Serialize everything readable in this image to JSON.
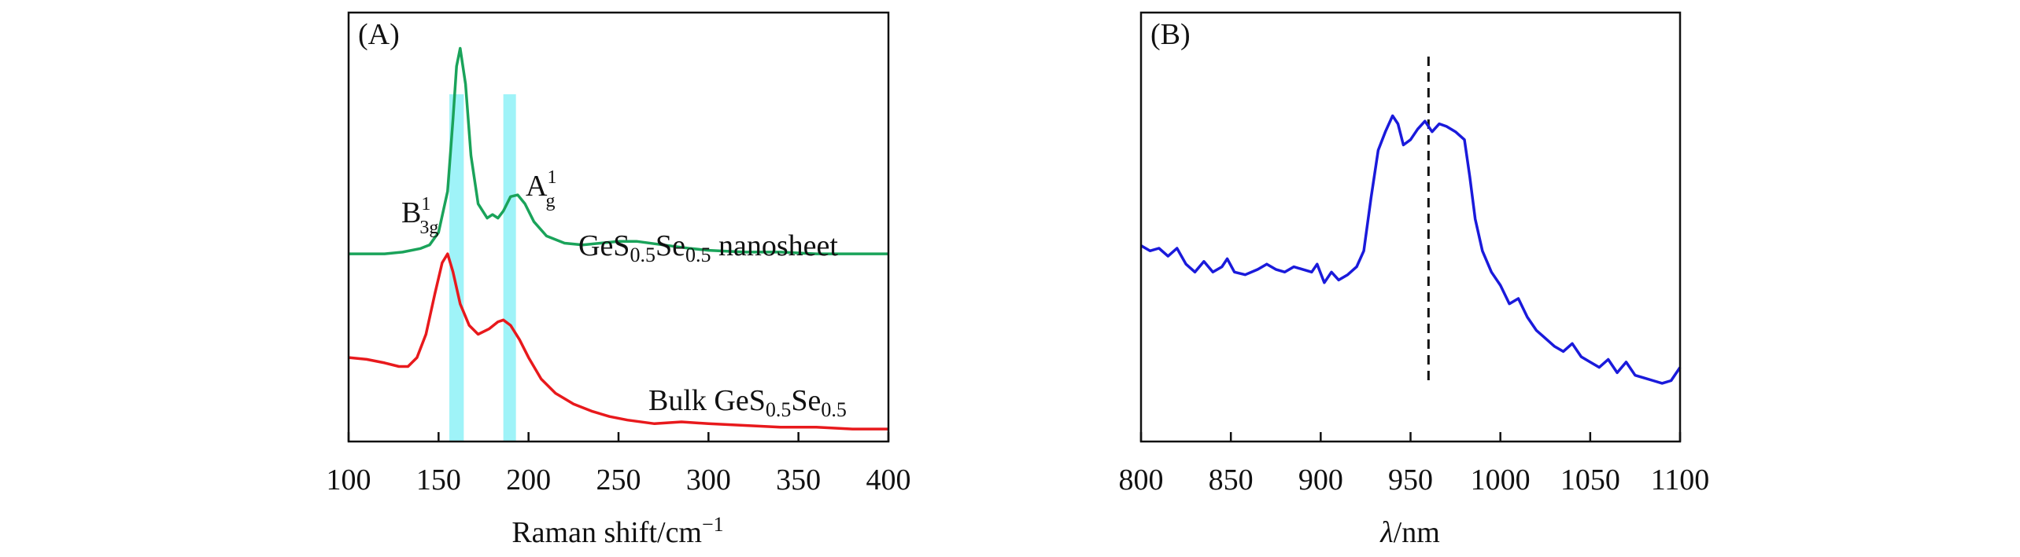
{
  "chart_data": [
    {
      "type": "line",
      "panel_label": "(A)",
      "xlabel": "Raman shift/cm",
      "xlabel_sup": "−1",
      "xlim": [
        100,
        400
      ],
      "xticks": [
        "100",
        "150",
        "200",
        "250",
        "300",
        "350",
        "400"
      ],
      "y_ticks_shown": false,
      "grid": false,
      "highlight_bands": [
        {
          "from": 156,
          "to": 164,
          "color": "#9ff3f8"
        },
        {
          "from": 186,
          "to": 193,
          "color": "#9ff3f8"
        }
      ],
      "annotations": [
        {
          "base": "B",
          "sup": "1",
          "sub": "3g",
          "x": 152,
          "y": 1.6
        },
        {
          "base": "A",
          "sup": "1",
          "sub": "g",
          "x": 198,
          "y": 1.8
        }
      ],
      "series": [
        {
          "name": "GeS0.5Se0.5 nanosheet",
          "label_parts": {
            "t1": "GeS",
            "s1": "0.5",
            "t2": "Se",
            "s2": "0.5",
            "t3": " nanosheet"
          },
          "color": "#1aa35a",
          "points": [
            [
              100,
              1.0
            ],
            [
              110,
              1.0
            ],
            [
              120,
              1.0
            ],
            [
              130,
              1.01
            ],
            [
              140,
              1.03
            ],
            [
              145,
              1.05
            ],
            [
              150,
              1.12
            ],
            [
              155,
              1.35
            ],
            [
              158,
              1.75
            ],
            [
              160,
              2.05
            ],
            [
              162,
              2.15
            ],
            [
              165,
              1.95
            ],
            [
              168,
              1.55
            ],
            [
              172,
              1.28
            ],
            [
              177,
              1.2
            ],
            [
              180,
              1.22
            ],
            [
              183,
              1.2
            ],
            [
              186,
              1.24
            ],
            [
              190,
              1.32
            ],
            [
              194,
              1.33
            ],
            [
              198,
              1.28
            ],
            [
              203,
              1.18
            ],
            [
              210,
              1.1
            ],
            [
              220,
              1.06
            ],
            [
              230,
              1.05
            ],
            [
              240,
              1.06
            ],
            [
              250,
              1.07
            ],
            [
              260,
              1.07
            ],
            [
              275,
              1.05
            ],
            [
              290,
              1.03
            ],
            [
              300,
              1.02
            ],
            [
              320,
              1.01
            ],
            [
              340,
              1.01
            ],
            [
              360,
              1.0
            ],
            [
              380,
              1.0
            ],
            [
              400,
              1.0
            ]
          ]
        },
        {
          "name": "Bulk GeS0.5Se0.5",
          "label_parts": {
            "t1": "Bulk GeS",
            "s1": "0.5",
            "t2": "Se",
            "s2": "0.5",
            "t3": ""
          },
          "color": "#e8191c",
          "points": [
            [
              100,
              0.42
            ],
            [
              110,
              0.41
            ],
            [
              120,
              0.39
            ],
            [
              128,
              0.37
            ],
            [
              133,
              0.37
            ],
            [
              138,
              0.42
            ],
            [
              143,
              0.55
            ],
            [
              148,
              0.78
            ],
            [
              152,
              0.95
            ],
            [
              155,
              1.0
            ],
            [
              158,
              0.9
            ],
            [
              162,
              0.72
            ],
            [
              167,
              0.6
            ],
            [
              172,
              0.55
            ],
            [
              178,
              0.58
            ],
            [
              183,
              0.62
            ],
            [
              186,
              0.63
            ],
            [
              190,
              0.6
            ],
            [
              195,
              0.52
            ],
            [
              200,
              0.42
            ],
            [
              207,
              0.3
            ],
            [
              215,
              0.22
            ],
            [
              225,
              0.16
            ],
            [
              235,
              0.12
            ],
            [
              245,
              0.09
            ],
            [
              255,
              0.07
            ],
            [
              270,
              0.05
            ],
            [
              285,
              0.06
            ],
            [
              300,
              0.05
            ],
            [
              320,
              0.04
            ],
            [
              340,
              0.03
            ],
            [
              360,
              0.03
            ],
            [
              380,
              0.02
            ],
            [
              400,
              0.02
            ]
          ]
        }
      ]
    },
    {
      "type": "line",
      "panel_label": "(B)",
      "xlabel_var": "λ",
      "xlabel_unit": "/nm",
      "xlim": [
        800,
        1100
      ],
      "xticks": [
        "800",
        "850",
        "900",
        "950",
        "1000",
        "1050",
        "1100"
      ],
      "y_ticks_shown": false,
      "grid": false,
      "reference_line": {
        "x": 960,
        "style": "dashed",
        "color": "#111111"
      },
      "series": [
        {
          "color": "#1a1adb",
          "points": [
            [
              800,
              0.62
            ],
            [
              805,
              0.6
            ],
            [
              810,
              0.61
            ],
            [
              815,
              0.58
            ],
            [
              820,
              0.61
            ],
            [
              825,
              0.55
            ],
            [
              830,
              0.52
            ],
            [
              835,
              0.56
            ],
            [
              840,
              0.52
            ],
            [
              845,
              0.54
            ],
            [
              848,
              0.57
            ],
            [
              852,
              0.52
            ],
            [
              858,
              0.51
            ],
            [
              865,
              0.53
            ],
            [
              870,
              0.55
            ],
            [
              875,
              0.53
            ],
            [
              880,
              0.52
            ],
            [
              885,
              0.54
            ],
            [
              890,
              0.53
            ],
            [
              895,
              0.52
            ],
            [
              898,
              0.55
            ],
            [
              902,
              0.48
            ],
            [
              906,
              0.52
            ],
            [
              910,
              0.49
            ],
            [
              915,
              0.51
            ],
            [
              920,
              0.54
            ],
            [
              924,
              0.6
            ],
            [
              928,
              0.8
            ],
            [
              932,
              0.98
            ],
            [
              936,
              1.05
            ],
            [
              940,
              1.11
            ],
            [
              943,
              1.08
            ],
            [
              946,
              1.0
            ],
            [
              950,
              1.02
            ],
            [
              954,
              1.06
            ],
            [
              958,
              1.09
            ],
            [
              962,
              1.05
            ],
            [
              966,
              1.08
            ],
            [
              970,
              1.07
            ],
            [
              975,
              1.05
            ],
            [
              980,
              1.02
            ],
            [
              983,
              0.88
            ],
            [
              986,
              0.72
            ],
            [
              990,
              0.6
            ],
            [
              995,
              0.52
            ],
            [
              1000,
              0.47
            ],
            [
              1005,
              0.4
            ],
            [
              1010,
              0.42
            ],
            [
              1015,
              0.35
            ],
            [
              1020,
              0.3
            ],
            [
              1025,
              0.27
            ],
            [
              1030,
              0.24
            ],
            [
              1035,
              0.22
            ],
            [
              1040,
              0.25
            ],
            [
              1045,
              0.2
            ],
            [
              1050,
              0.18
            ],
            [
              1055,
              0.16
            ],
            [
              1060,
              0.19
            ],
            [
              1065,
              0.14
            ],
            [
              1070,
              0.18
            ],
            [
              1075,
              0.13
            ],
            [
              1080,
              0.12
            ],
            [
              1085,
              0.11
            ],
            [
              1090,
              0.1
            ],
            [
              1095,
              0.11
            ],
            [
              1100,
              0.16
            ]
          ]
        }
      ]
    }
  ]
}
